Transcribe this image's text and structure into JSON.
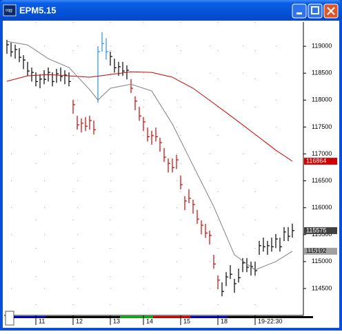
{
  "window_title": "EPM5.15",
  "chart_data": {
    "type": "ohlc",
    "ylim": [
      114000,
      119450
    ],
    "yticks": [
      114500,
      115000,
      115500,
      116000,
      116500,
      117000,
      117500,
      118000,
      118500,
      119000
    ],
    "xlim": [
      -0.67,
      71.67
    ],
    "xticks": [
      {
        "value": 7,
        "label": "11"
      },
      {
        "value": 16,
        "label": "12"
      },
      {
        "value": 25,
        "label": "13"
      },
      {
        "value": 33,
        "label": "14"
      },
      {
        "value": 42,
        "label": "15"
      },
      {
        "value": 51,
        "label": "18"
      },
      {
        "value": 60,
        "label": "19-22:30"
      }
    ],
    "session_colors": [
      "#0000c0",
      "#000000",
      "#000000",
      "#00b000",
      "#d00000",
      "#0000c0",
      "#000000",
      "#000000"
    ],
    "grid": true,
    "palette": [
      "#000000",
      "#1e90ff",
      "#d00000"
    ],
    "bar_color": [
      0,
      0,
      0,
      0,
      0,
      0,
      0,
      0,
      0,
      0,
      0,
      0,
      0,
      0,
      0,
      0,
      2,
      2,
      2,
      2,
      2,
      2,
      1,
      1,
      1,
      0,
      0,
      0,
      0,
      0,
      2,
      2,
      2,
      2,
      2,
      2,
      2,
      2,
      2,
      2,
      2,
      2,
      2,
      2,
      2,
      2,
      2,
      2,
      2,
      2,
      2,
      2,
      0,
      0,
      0,
      0,
      0,
      0,
      0,
      0,
      0,
      0,
      0,
      0,
      0,
      0,
      0,
      0,
      0,
      0
    ],
    "high": [
      119120,
      119065,
      119030,
      118965,
      118835,
      118710,
      118605,
      118515,
      118480,
      118555,
      118605,
      118515,
      118580,
      118605,
      118555,
      118515,
      118005,
      117710,
      117660,
      117685,
      117710,
      117620,
      119000,
      119260,
      119150,
      118900,
      118770,
      118710,
      118710,
      118645,
      118390,
      118070,
      117875,
      117685,
      117490,
      117430,
      117490,
      117300,
      117110,
      116915,
      116915,
      116980,
      116600,
      116215,
      116345,
      116150,
      115960,
      115765,
      115700,
      115575,
      115125,
      114745,
      114615,
      114805,
      114935,
      114680,
      114870,
      115065,
      115065,
      115000,
      115000,
      115385,
      115445,
      115385,
      115445,
      115510,
      115445,
      115640,
      115640,
      115705
    ],
    "low": [
      118860,
      118805,
      118770,
      118705,
      118575,
      118450,
      118345,
      118255,
      118220,
      118295,
      118345,
      118255,
      118320,
      118345,
      118295,
      118255,
      117745,
      117450,
      117400,
      117425,
      117450,
      117360,
      117950,
      118900,
      118750,
      118640,
      118510,
      118450,
      118450,
      118385,
      118130,
      117810,
      117615,
      117425,
      117230,
      117170,
      117230,
      117040,
      116850,
      116655,
      116655,
      116720,
      116340,
      115955,
      116085,
      115890,
      115700,
      115505,
      115440,
      115315,
      114865,
      114485,
      114355,
      114545,
      114675,
      114420,
      114610,
      114805,
      114805,
      114740,
      114740,
      115125,
      115185,
      115125,
      115185,
      115250,
      115185,
      115380,
      115380,
      115445
    ],
    "close": [
      119030,
      118895,
      118940,
      118795,
      118745,
      118540,
      118515,
      118345,
      118390,
      118385,
      118515,
      118345,
      118490,
      118435,
      118465,
      118345,
      117915,
      117540,
      117570,
      117515,
      117620,
      117450,
      118900,
      119050,
      118900,
      118810,
      118600,
      118620,
      118540,
      118555,
      118220,
      117980,
      117705,
      117595,
      117320,
      117340,
      117320,
      117210,
      116940,
      116825,
      116745,
      116890,
      116430,
      116125,
      116175,
      116060,
      115790,
      115675,
      115530,
      115485,
      114955,
      114655,
      114445,
      114715,
      114765,
      114590,
      114700,
      114975,
      114895,
      114910,
      114830,
      115295,
      115275,
      115295,
      115275,
      115420,
      115275,
      115550,
      115470,
      115575
    ],
    "averages": [
      {
        "color": "#d00000",
        "label_fill": "#d00000",
        "label_text": "#ffffff",
        "x": [
          0,
          5,
          10,
          15,
          20,
          25,
          30,
          35,
          40,
          45,
          50,
          55,
          60,
          65,
          69
        ],
        "values": [
          118350,
          118450,
          118475,
          118450,
          118425,
          118475,
          118525,
          118515,
          118425,
          118220,
          117940,
          117655,
          117365,
          117070,
          116864
        ]
      },
      {
        "color": "#808080",
        "label_fill": "#a0a0a0",
        "label_text": "#000000",
        "x": [
          0,
          5,
          10,
          15,
          20,
          22,
          25,
          30,
          35,
          40,
          45,
          50,
          55,
          60,
          65,
          69
        ],
        "values": [
          119090,
          119025,
          118770,
          118605,
          118195,
          118000,
          118220,
          118295,
          118170,
          117555,
          116785,
          116020,
          115125,
          114845,
          115000,
          115192
        ]
      }
    ]
  }
}
